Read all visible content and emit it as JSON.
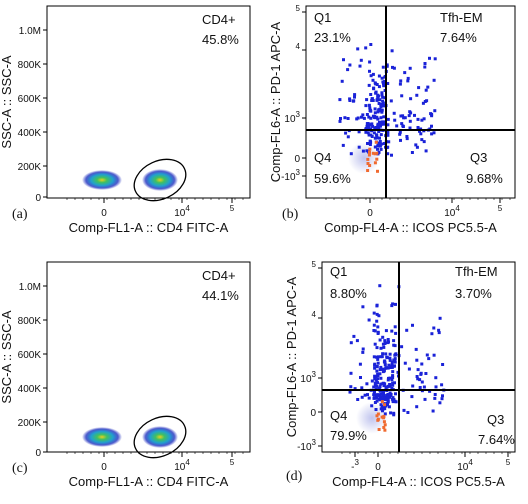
{
  "panels": [
    {
      "label": "(a)",
      "y_axis_title": "SSC-A :: SSC-A",
      "x_axis_title": "Comp-FL1-A :: CD4 FITC-A",
      "gate": {
        "name": "CD4+",
        "value": "45.8%"
      },
      "y_ticks": [
        {
          "base": "1.0M"
        },
        {
          "base": "800K"
        },
        {
          "base": "600K"
        },
        {
          "base": "400K"
        },
        {
          "base": "200K"
        },
        {
          "base": "0"
        }
      ],
      "x_ticks": [
        {
          "base": "0"
        },
        {
          "base": "10",
          "exponent": "4"
        },
        {
          "base": "",
          "exponent": "5"
        }
      ]
    },
    {
      "label": "(b)",
      "y_axis_title": "Comp-FL6-A :: PD-1 APC-A",
      "x_axis_title": "Comp-FL4-A :: ICOS PC5.5-A",
      "quadrants": [
        {
          "name": "Q1",
          "value": "23.1%"
        },
        {
          "name": "Tfh-EM",
          "value": "7.64%"
        },
        {
          "name": "Q4",
          "value": "59.6%"
        },
        {
          "name": "Q3",
          "value": "9.68%"
        }
      ],
      "y_ticks": [
        {
          "base": "",
          "exponent": "5"
        },
        {
          "base": "",
          "exponent": "4"
        },
        {
          "base": "10",
          "exponent": "3"
        },
        {
          "base": "0"
        },
        {
          "base": "-10",
          "exponent": "3"
        }
      ],
      "x_ticks": [
        {
          "base": "0"
        },
        {
          "base": "10",
          "exponent": "4"
        },
        {
          "base": "",
          "exponent": "5"
        }
      ]
    },
    {
      "label": "(c)",
      "y_axis_title": "SSC-A :: SSC-A",
      "x_axis_title": "Comp-FL1-A :: CD4 FITC-A",
      "gate": {
        "name": "CD4+",
        "value": "44.1%"
      },
      "y_ticks": [
        {
          "base": "1.0M"
        },
        {
          "base": "800K"
        },
        {
          "base": "600K"
        },
        {
          "base": "400K"
        },
        {
          "base": "200K"
        },
        {
          "base": "0"
        }
      ],
      "x_ticks": [
        {
          "base": "0"
        },
        {
          "base": "10",
          "exponent": "4"
        },
        {
          "base": "",
          "exponent": "5"
        }
      ]
    },
    {
      "label": "(d)",
      "y_axis_title": "Comp-FL6-A :: PD-1 APC-A",
      "x_axis_title": "Comp-FL4-A :: ICOS PC5.5-A",
      "quadrants": [
        {
          "name": "Q1",
          "value": "8.80%"
        },
        {
          "name": "Tfh-EM",
          "value": "3.70%"
        },
        {
          "name": "Q4",
          "value": "79.9%"
        },
        {
          "name": "Q3",
          "value": "7.64%"
        }
      ],
      "y_ticks": [
        {
          "base": "",
          "exponent": "5"
        },
        {
          "base": "",
          "exponent": "4"
        },
        {
          "base": "10",
          "exponent": "3"
        },
        {
          "base": "0"
        },
        {
          "base": "-10",
          "exponent": "3"
        }
      ],
      "x_ticks": [
        {
          "base": "-",
          "exponent": "3"
        },
        {
          "base": "0"
        },
        {
          "base": "10",
          "exponent": "4"
        },
        {
          "base": "",
          "exponent": "5"
        }
      ]
    }
  ]
}
